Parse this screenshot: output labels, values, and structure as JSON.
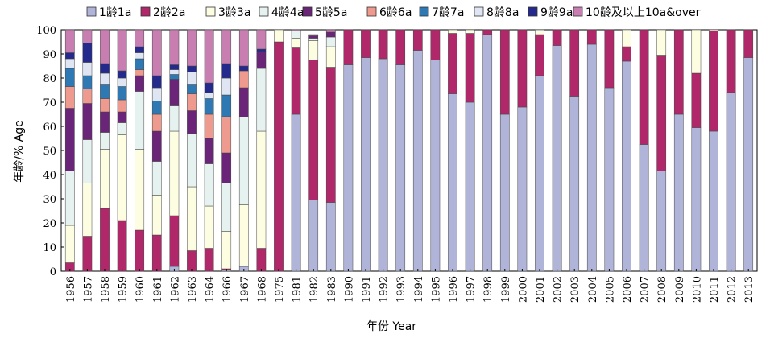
{
  "chart_data": {
    "type": "bar",
    "stacked": true,
    "xlabel": "年份 Year",
    "ylabel": "年龄/% Age",
    "ylim": [
      0,
      100
    ],
    "yticks": [
      0,
      10,
      20,
      30,
      40,
      50,
      60,
      70,
      80,
      90,
      100
    ],
    "legend_position": "top",
    "categories": [
      "1956",
      "1957",
      "1958",
      "1959",
      "1960",
      "1961",
      "1962",
      "1963",
      "1964",
      "1966",
      "1967",
      "1968",
      "1975",
      "1981",
      "1982",
      "1983",
      "1990",
      "1991",
      "1992",
      "1993",
      "1994",
      "1995",
      "1996",
      "1997",
      "1998",
      "1999",
      "2000",
      "2001",
      "2002",
      "2003",
      "2004",
      "2005",
      "2006",
      "2007",
      "2008",
      "2009",
      "2010",
      "2011",
      "2012",
      "2013"
    ],
    "series": [
      {
        "name": "1龄1a",
        "color": "#b0b4d8",
        "values": [
          0,
          0,
          0,
          0,
          0,
          0,
          2,
          0,
          0,
          0.5,
          2,
          0,
          0,
          65,
          29.5,
          28.5,
          85.5,
          88.5,
          88,
          85.5,
          91.5,
          87.5,
          73.5,
          70,
          98,
          65,
          68,
          81,
          93.5,
          72.5,
          94,
          76,
          87,
          52.5,
          41.5,
          65,
          59.5,
          58,
          74,
          88.5
        ]
      },
      {
        "name": "2龄2a",
        "color": "#b0286a",
        "values": [
          3.5,
          14.5,
          26,
          21,
          17,
          15,
          21,
          8.5,
          9.5,
          0.5,
          0,
          9.5,
          95,
          27.5,
          58,
          56,
          14.5,
          11.5,
          12,
          14.5,
          8.5,
          12.5,
          25,
          28.5,
          2,
          35,
          32,
          17,
          6.5,
          27.5,
          6,
          24,
          6,
          47.5,
          48,
          35,
          22.5,
          41.5,
          26,
          11.5
        ]
      },
      {
        "name": "3龄3a",
        "color": "#fdfde2",
        "values": [
          15.5,
          22,
          24.5,
          35.5,
          33.5,
          16.5,
          35,
          26.5,
          17.5,
          15.5,
          25.5,
          48.5,
          5,
          4,
          8,
          8.5,
          0,
          0,
          0,
          0,
          0,
          0,
          1.5,
          1.5,
          0,
          0,
          0,
          1.5,
          0,
          0,
          0,
          0,
          7,
          0,
          10.5,
          0,
          18,
          0.5,
          0,
          0
        ]
      },
      {
        "name": "4龄4a",
        "color": "#e6f2f0",
        "values": [
          22.5,
          18,
          7,
          5,
          24,
          14,
          10.5,
          22,
          17.5,
          20,
          36.5,
          26,
          0,
          3,
          1,
          4,
          0,
          0,
          0,
          0,
          0,
          0,
          0,
          0,
          0,
          0,
          0,
          0.5,
          0,
          0,
          0,
          0,
          0,
          0,
          0,
          0,
          0,
          0,
          0,
          0
        ]
      },
      {
        "name": "5龄5a",
        "color": "#6a2478",
        "values": [
          26,
          15,
          8.5,
          4.5,
          6.5,
          12.5,
          11,
          9.5,
          10.5,
          12.5,
          12,
          7,
          0,
          0,
          1,
          2,
          0,
          0,
          0,
          0,
          0,
          0,
          0,
          0,
          0,
          0,
          0,
          0,
          0,
          0,
          0,
          0,
          0,
          0,
          0,
          0,
          0,
          0,
          0,
          0
        ]
      },
      {
        "name": "6龄6a",
        "color": "#ef9a8e",
        "values": [
          9,
          6,
          5.5,
          5,
          2.5,
          7,
          0,
          7,
          10,
          15,
          7,
          0,
          0,
          0,
          0,
          0,
          0,
          0,
          0,
          0,
          0,
          0,
          0,
          0,
          0,
          0,
          0,
          0,
          0,
          0,
          0,
          0,
          0,
          0,
          0,
          0,
          0,
          0,
          0,
          0
        ]
      },
      {
        "name": "7龄7a",
        "color": "#2e78b4",
        "values": [
          7.5,
          5.5,
          6,
          5.5,
          4.5,
          5.5,
          2,
          4,
          6.5,
          9,
          0,
          0,
          0,
          0,
          0,
          0,
          0,
          0,
          0,
          0,
          0,
          0,
          0,
          0,
          0,
          0,
          0,
          0,
          0,
          0,
          0,
          0,
          0,
          0,
          0,
          0,
          0,
          0,
          0,
          0
        ]
      },
      {
        "name": "8龄8a",
        "color": "#dfe5f2",
        "values": [
          4,
          5.5,
          4.5,
          3.5,
          2.5,
          5.5,
          2,
          5,
          2.5,
          7,
          0,
          0,
          0,
          0,
          0,
          0,
          0,
          0,
          0,
          0,
          0,
          0,
          0,
          0,
          0,
          0,
          0,
          0,
          0,
          0,
          0,
          0,
          0,
          0,
          0,
          0,
          0,
          0,
          0,
          0
        ]
      },
      {
        "name": "9龄9a",
        "color": "#242a8c",
        "values": [
          2.5,
          8,
          4,
          3,
          2.5,
          5,
          2,
          2.5,
          4,
          6,
          2,
          1,
          0,
          0,
          0,
          0,
          0,
          0,
          0,
          0,
          0,
          0,
          0,
          0,
          0,
          0,
          0,
          0,
          0,
          0,
          0,
          0,
          0,
          0,
          0,
          0,
          0,
          0,
          0,
          0
        ]
      },
      {
        "name": "10龄及以上10a&over",
        "color": "#c97eb2",
        "values": [
          9.5,
          5.5,
          14,
          17,
          7,
          19,
          14.5,
          15,
          22,
          14,
          15,
          8,
          0,
          0.5,
          0.5,
          1,
          0,
          0,
          0,
          0,
          0,
          0,
          0,
          0,
          0,
          0,
          0,
          0,
          0,
          0,
          0,
          0,
          0,
          0,
          0,
          0,
          0,
          0,
          0,
          0
        ]
      }
    ]
  }
}
